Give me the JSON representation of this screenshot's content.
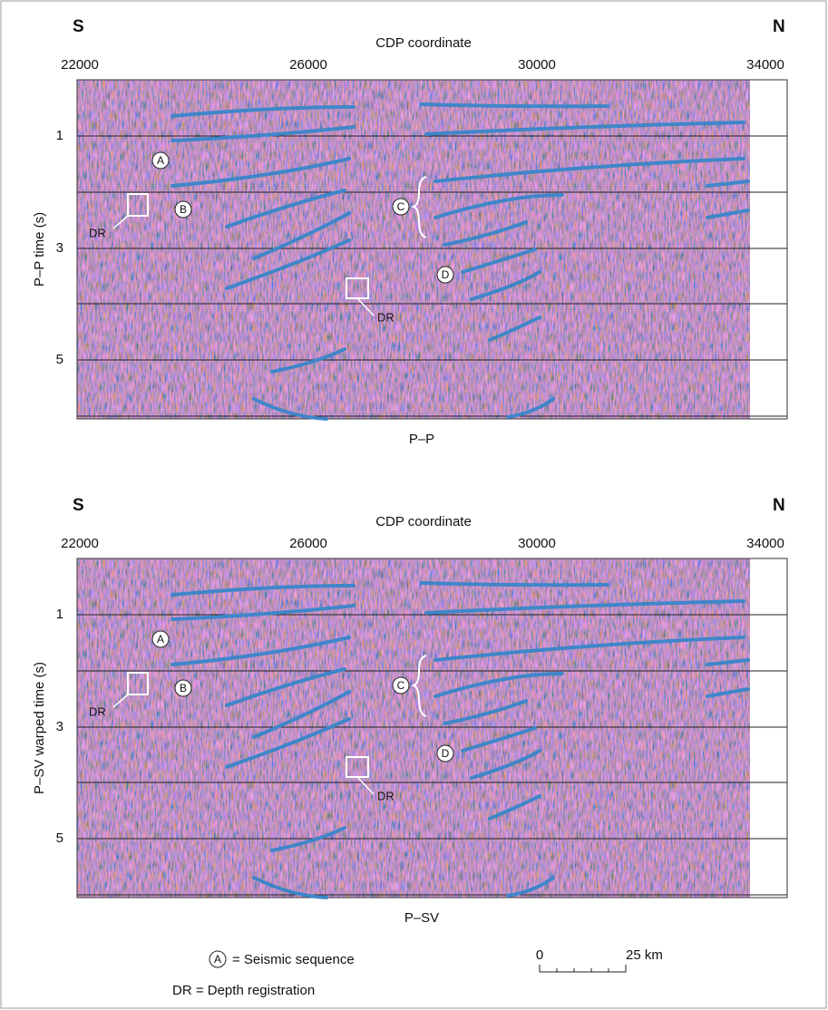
{
  "panels": [
    {
      "left_label": "S",
      "right_label": "N",
      "x_axis_title": "CDP coordinate",
      "x_ticks": [
        22000,
        26000,
        30000,
        34000
      ],
      "y_axis_title": "P–P time (s)",
      "y_ticks": [
        1,
        3,
        5
      ],
      "caption": "P–P",
      "annotations": [
        "A",
        "B",
        "C",
        "D"
      ],
      "dr_labels": [
        "DR",
        "DR"
      ]
    },
    {
      "left_label": "S",
      "right_label": "N",
      "x_axis_title": "CDP coordinate",
      "x_ticks": [
        22000,
        26000,
        30000,
        34000
      ],
      "y_axis_title": "P–SV warped time (s)",
      "y_ticks": [
        1,
        3,
        5
      ],
      "caption": "P–SV",
      "annotations": [
        "A",
        "B",
        "C",
        "D"
      ],
      "dr_labels": [
        "DR",
        "DR"
      ]
    }
  ],
  "legend": {
    "sequence_symbol": "A",
    "sequence_text": "= Seismic sequence",
    "dr_text": "DR = Depth registration"
  },
  "scale_bar": {
    "start": 0,
    "end_label": "25 km"
  }
}
